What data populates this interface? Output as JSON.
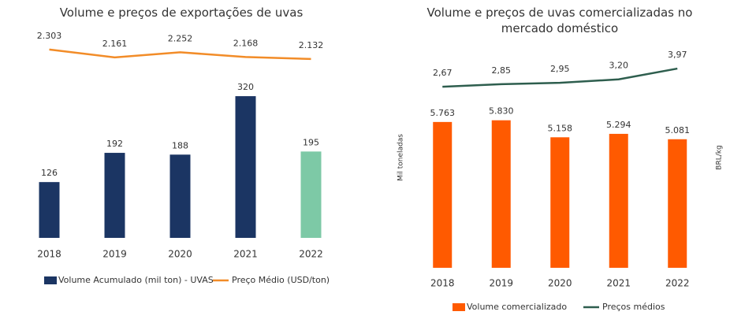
{
  "chart_data": [
    {
      "type": "combo",
      "title": "Volume e preços de exportações de uvas",
      "categories": [
        "2018",
        "2019",
        "2020",
        "2021",
        "2022"
      ],
      "ylim": [
        0,
        450
      ],
      "y2lim": [
        -1100,
        2500
      ],
      "series": [
        {
          "name": "Volume Acumulado (mil ton) - UVAS",
          "kind": "bar",
          "color": "#1b3563",
          "colors": [
            "#1b3563",
            "#1b3563",
            "#1b3563",
            "#1b3563",
            "#7dc9a6"
          ],
          "values": [
            126,
            192,
            188,
            320,
            195
          ]
        },
        {
          "name": "Preço Médio (USD/ton)",
          "kind": "line",
          "axis": "y2",
          "color": "#f28c28",
          "values": [
            2303,
            2161,
            2252,
            2168,
            2132
          ],
          "value_labels": [
            "2.303",
            "2.161",
            "2.252",
            "2.168",
            "2.132"
          ]
        }
      ]
    },
    {
      "type": "combo",
      "title": "Volume e preços de uvas comercializadas no mercado doméstico",
      "y_label": "Mil toneladas",
      "y2_label": "BRL/kg",
      "categories": [
        "2018",
        "2019",
        "2020",
        "2021",
        "2022"
      ],
      "ylim": [
        0,
        8000
      ],
      "y2lim": [
        -10.3,
        4.2
      ],
      "series": [
        {
          "name": "Volume comercializado",
          "kind": "bar",
          "color": "#ff5a00",
          "values": [
            5763,
            5830,
            5158,
            5294,
            5081
          ],
          "value_labels": [
            "5.763",
            "5.830",
            "5.158",
            "5.294",
            "5.081"
          ]
        },
        {
          "name": "Preços médios",
          "kind": "line",
          "axis": "y2",
          "color": "#2e5e4e",
          "values": [
            2.67,
            2.85,
            2.95,
            3.2,
            3.97
          ],
          "value_labels": [
            "2,67",
            "2,85",
            "2,95",
            "3,20",
            "3,97"
          ]
        }
      ]
    }
  ]
}
